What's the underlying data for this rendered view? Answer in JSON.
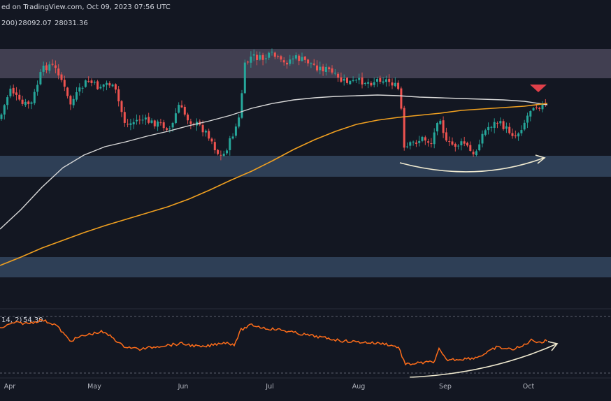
{
  "header": {
    "published": "ed on TradingView.com, Oct 09, 2023 07:56 UTC",
    "ma_params": "200)",
    "ma_value_1": "28092.07",
    "ma_value_2": "28031.36",
    "rsi_params": "14, 2)",
    "rsi_value": "54.39"
  },
  "colors": {
    "background": "#131722",
    "resistance_zone": "#4a4659",
    "support_zone": "#34475f",
    "bull": "#26a69a",
    "bear": "#ef5350",
    "ma_white": "#d8d8d8",
    "ma_orange": "#f0a020",
    "rsi": "#ff6d1a",
    "arrow": "#f0ead0",
    "marker": "#e0404a"
  },
  "chart_data": [
    {
      "type": "candlestick",
      "timeframe": "daily",
      "x_axis": {
        "ticks": [
          "Apr",
          "May",
          "Jun",
          "Jul",
          "Aug",
          "Sep",
          "Oct"
        ]
      },
      "moving_averages": [
        {
          "value": "28092.07",
          "color": "white"
        },
        {
          "value": "28031.36",
          "color": "orange"
        }
      ],
      "zones": [
        "resistance-upper",
        "support-middle",
        "support-lower"
      ],
      "annotations": [
        "rising-arrow-below-price",
        "down-triangle-at-ma-cross"
      ],
      "grid": false
    },
    {
      "type": "line",
      "rsi_value": "54.39",
      "annotations": [
        "rising-arrow-below-rsi"
      ],
      "grid": false
    }
  ]
}
